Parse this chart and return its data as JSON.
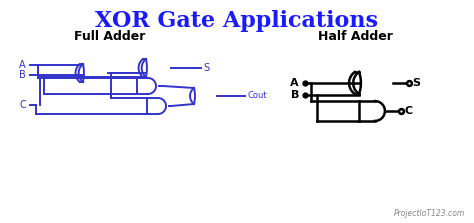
{
  "title": "XOR Gate Applications",
  "title_color": "#1a1aff",
  "title_fontsize": 16,
  "bg_color": "#ffffff",
  "full_adder_label": "Full Adder",
  "half_adder_label": "Half Adder",
  "watermark": "ProjectIoT123.com",
  "gate_color_full": "#3333cc",
  "gate_color_half": "#000000",
  "line_color_full": "#3333cc",
  "line_color_half": "#000000"
}
